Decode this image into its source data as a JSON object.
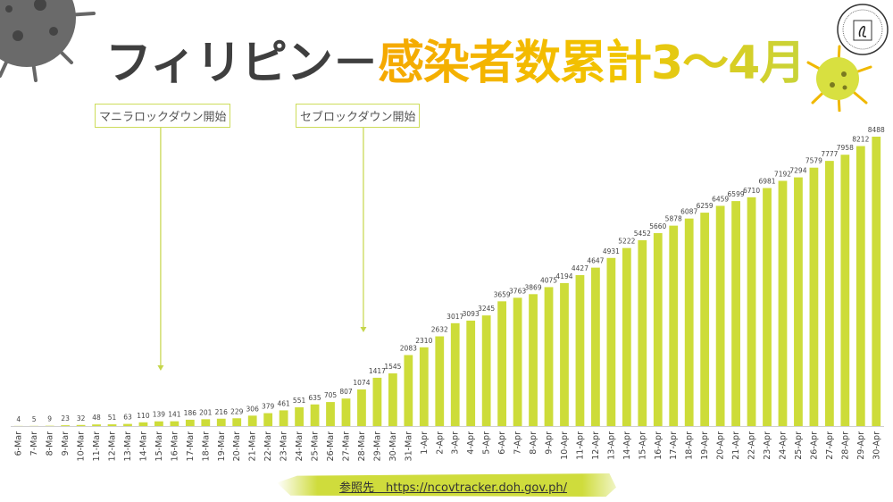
{
  "title": {
    "part1": "フィリピン－",
    "part2": "感染者数累計3～4月"
  },
  "annotations": [
    {
      "label": "マニラロックダウン開始",
      "date": "15-Mar"
    },
    {
      "label": "セブロックダウン開始",
      "date": "28-Mar"
    }
  ],
  "footer": {
    "source": "参照先　https://ncovtracker.doh.gov.ph/"
  },
  "colors": {
    "bar": "#cddc39",
    "arrow": "#c5d64a",
    "title_dark": "#3f3f3f",
    "title_accent": "#f5b400"
  },
  "chart_data": {
    "type": "bar",
    "title": "フィリピン－感染者数累計3～4月",
    "xlabel": "",
    "ylabel": "",
    "grid": false,
    "categories": [
      "6-Mar",
      "7-Mar",
      "8-Mar",
      "9-Mar",
      "10-Mar",
      "11-Mar",
      "12-Mar",
      "13-Mar",
      "14-Mar",
      "15-Mar",
      "16-Mar",
      "17-Mar",
      "18-Mar",
      "19-Mar",
      "20-Mar",
      "21-Mar",
      "22-Mar",
      "23-Mar",
      "24-Mar",
      "25-Mar",
      "26-Mar",
      "27-Mar",
      "28-Mar",
      "29-Mar",
      "30-Mar",
      "31-Mar",
      "1-Apr",
      "2-Apr",
      "3-Apr",
      "4-Apr",
      "5-Apr",
      "6-Apr",
      "7-Apr",
      "8-Apr",
      "9-Apr",
      "10-Apr",
      "11-Apr",
      "12-Apr",
      "13-Apr",
      "14-Apr",
      "15-Apr",
      "16-Apr",
      "17-Apr",
      "18-Apr",
      "19-Apr",
      "20-Apr",
      "21-Apr",
      "22-Apr",
      "23-Apr",
      "24-Apr",
      "25-Apr",
      "26-Apr",
      "27-Apr",
      "28-Apr",
      "29-Apr",
      "30-Apr"
    ],
    "values": [
      4,
      5,
      9,
      23,
      32,
      48,
      51,
      63,
      110,
      139,
      141,
      186,
      201,
      216,
      229,
      306,
      379,
      461,
      551,
      635,
      705,
      807,
      1074,
      1417,
      1545,
      2083,
      2310,
      2632,
      3017,
      3093,
      3245,
      3659,
      3763,
      3869,
      4075,
      4194,
      4427,
      4647,
      4931,
      5222,
      5452,
      5660,
      5878,
      6087,
      6259,
      6459,
      6599,
      6710,
      6981,
      7192,
      7294,
      7579,
      7777,
      7958,
      8212,
      8488
    ],
    "ylim": [
      0,
      8488
    ]
  }
}
